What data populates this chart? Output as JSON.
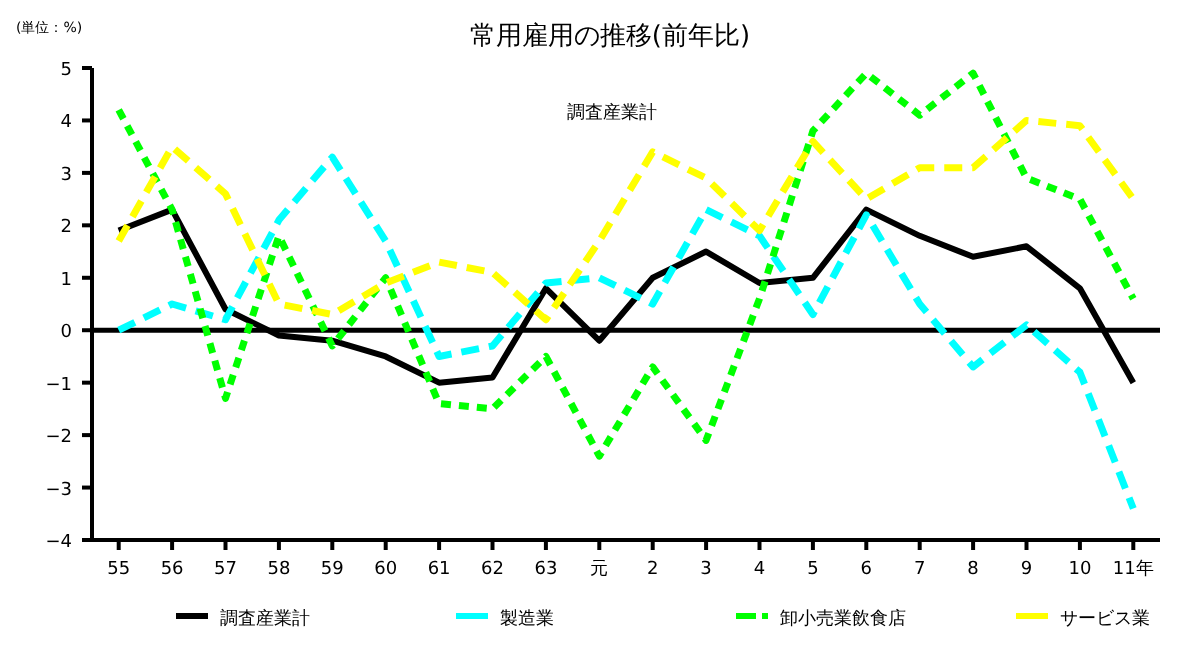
{
  "chart_data": {
    "type": "line",
    "title": "常用雇用の推移(前年比)",
    "ylabel": "(単位：%)",
    "annotations": [
      "調査産業計"
    ],
    "categories": [
      "55",
      "56",
      "57",
      "58",
      "59",
      "60",
      "61",
      "62",
      "63",
      "元",
      "2",
      "3",
      "4",
      "5",
      "6",
      "7",
      "8",
      "9",
      "10",
      "11年"
    ],
    "ylim": [
      -4,
      5
    ],
    "yticks": [
      -4,
      -3,
      -2,
      -1,
      0,
      1,
      2,
      3,
      4,
      5
    ],
    "grid": false,
    "legend": "bottom",
    "marker": "none",
    "ref_lines": [
      {
        "axis": "y",
        "value": 0,
        "color": "#000000",
        "line_style": "solid"
      }
    ],
    "series": [
      {
        "name": "調査産業計",
        "color": "#000000",
        "line_style": "solid",
        "values": [
          1.9,
          2.3,
          0.4,
          -0.1,
          -0.2,
          -0.5,
          -1.0,
          -0.9,
          0.8,
          -0.2,
          1.0,
          1.5,
          0.9,
          1.0,
          2.3,
          1.8,
          1.4,
          1.6,
          0.8,
          -1.0
        ]
      },
      {
        "name": "製造業",
        "color": "#00ffff",
        "line_style": "dashed",
        "values": [
          0.0,
          0.5,
          0.2,
          2.1,
          3.3,
          1.7,
          -0.5,
          -0.3,
          0.9,
          1.0,
          0.5,
          2.3,
          1.8,
          0.3,
          2.2,
          0.5,
          -0.7,
          0.1,
          -0.8,
          -3.4
        ]
      },
      {
        "name": "卸小売業飲食店",
        "color": "#00ff00",
        "line_style": "dotted",
        "values": [
          4.2,
          2.3,
          -1.3,
          1.8,
          -0.3,
          1.0,
          -1.4,
          -1.5,
          -0.5,
          -2.4,
          -0.7,
          -2.1,
          0.6,
          3.8,
          4.9,
          4.1,
          4.9,
          2.9,
          2.5,
          0.6
        ]
      },
      {
        "name": "サービス業",
        "color": "#ffff00",
        "line_style": "dashed",
        "values": [
          1.7,
          3.5,
          2.6,
          0.5,
          0.3,
          0.9,
          1.3,
          1.1,
          0.2,
          1.7,
          3.4,
          2.9,
          1.9,
          3.6,
          2.5,
          3.1,
          3.1,
          4.0,
          3.9,
          2.5
        ]
      }
    ]
  }
}
